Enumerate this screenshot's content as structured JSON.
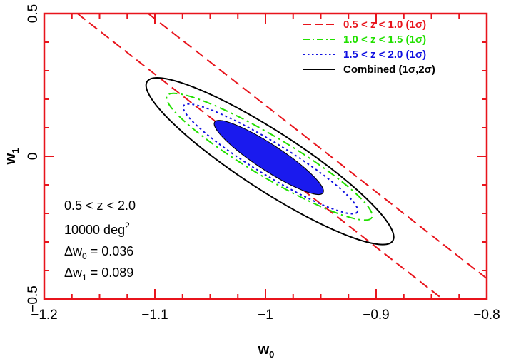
{
  "chart_data": {
    "type": "contour",
    "xlabel": "w",
    "xlabel_sub": "0",
    "ylabel": "w",
    "ylabel_sub": "1",
    "xlim": [
      -1.2,
      -0.8
    ],
    "ylim": [
      -0.5,
      0.5
    ],
    "x_ticks": [
      -1.2,
      -1.1,
      -1.0,
      -0.9,
      -0.8
    ],
    "x_tick_labels": [
      "−1.2",
      "−1.1",
      "−1",
      "−0.9",
      "−0.8"
    ],
    "y_ticks": [
      -0.5,
      0,
      0.5
    ],
    "y_tick_labels": [
      "−0.5",
      "0",
      "0.5"
    ],
    "axis_color": "#e8141c",
    "legend_position": "top-right",
    "legend": [
      {
        "label": "0.5 < z < 1.0 (1σ)",
        "color": "#e8141c",
        "dash": "long-dash"
      },
      {
        "label": "1.0 < z < 1.5 (1σ)",
        "color": "#22e000",
        "dash": "dash-dot"
      },
      {
        "label": "1.5 < z < 2.0 (1σ)",
        "color": "#1010e0",
        "dash": "dotted"
      },
      {
        "label": "Combined (1σ,2σ)",
        "color": "#000000",
        "dash": "solid"
      }
    ],
    "series": [
      {
        "name": "0.5 < z < 1.0 (1σ)",
        "color": "#e8141c",
        "style": "long-dash",
        "line1": [
          [
            -1.17,
            0.5
          ],
          [
            -0.84,
            -0.5
          ]
        ],
        "line2": [
          [
            -1.106,
            0.5
          ],
          [
            -0.797,
            -0.437
          ]
        ]
      },
      {
        "name": "1.0 < z < 1.5 (1σ)",
        "color": "#22e000",
        "style": "dash-dot",
        "ellipse": {
          "center": [
            -1.0,
            0.0
          ],
          "ends": [
            [
              -1.089,
              0.212
            ],
            [
              -0.904,
              -0.215
            ]
          ],
          "semi_minor_frac": 0.17
        }
      },
      {
        "name": "1.5 < z < 2.0 (1σ)",
        "color": "#1010e0",
        "style": "dotted",
        "ellipse": {
          "center": [
            -1.0,
            0.0
          ],
          "ends": [
            [
              -1.074,
              0.177
            ],
            [
              -0.917,
              -0.195
            ]
          ],
          "semi_minor_frac": 0.16
        }
      },
      {
        "name": "Combined 2σ",
        "color": "#000000",
        "style": "solid",
        "ellipse": {
          "center": [
            -1.0,
            0.0
          ],
          "ends": [
            [
              -1.107,
              0.262
            ],
            [
              -0.885,
              -0.296
            ]
          ],
          "semi_minor_frac": 0.2
        }
      },
      {
        "name": "Combined 1σ",
        "color": "#1a1aee",
        "style": "filled",
        "ellipse": {
          "center": [
            -1.0,
            0.0
          ],
          "ends": [
            [
              -1.046,
              0.12
            ],
            [
              -0.948,
              -0.128
            ]
          ],
          "semi_minor_frac": 0.2
        }
      }
    ],
    "annotations": [
      {
        "text": "0.5 < z < 2.0"
      },
      {
        "text": "10000 deg",
        "sup": "2"
      },
      {
        "text": "Δw",
        "sub": "0",
        "rest": " = 0.036"
      },
      {
        "text": "Δw",
        "sub": "1",
        "rest": " = 0.089"
      }
    ]
  }
}
